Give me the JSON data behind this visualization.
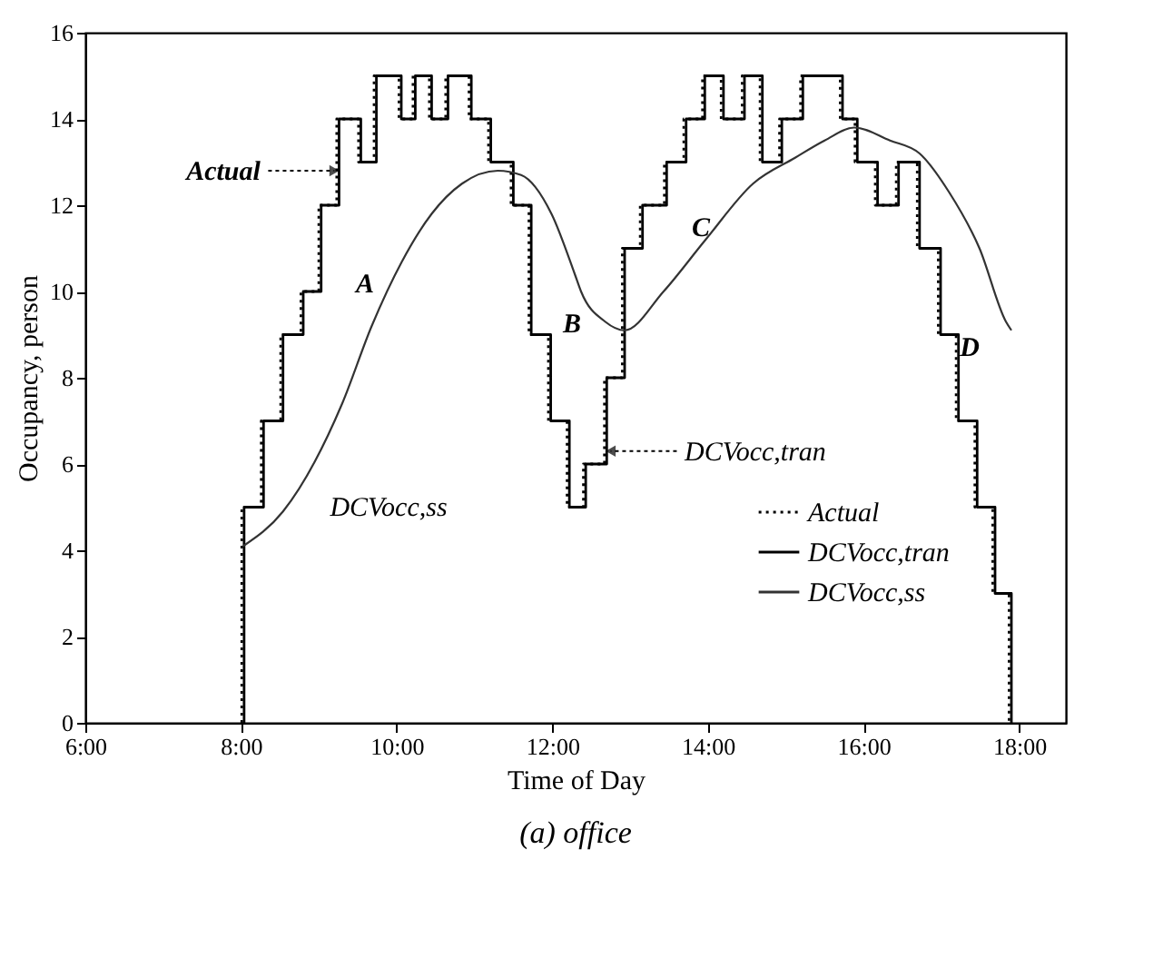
{
  "chart_data": {
    "type": "step",
    "title": "(a) office",
    "xlabel": "Time of Day",
    "ylabel": "Occupancy, person",
    "xlim": [
      6,
      18.6
    ],
    "xticks": [
      {
        "value": 6,
        "label": "6:00"
      },
      {
        "value": 8,
        "label": "8:00"
      },
      {
        "value": 10,
        "label": "10:00"
      },
      {
        "value": 12,
        "label": "12:00"
      },
      {
        "value": 14,
        "label": "14:00"
      },
      {
        "value": 16,
        "label": "16:00"
      },
      {
        "value": 18,
        "label": "18:00"
      }
    ],
    "ylim": [
      0,
      16
    ],
    "yticks": [
      0,
      2,
      4,
      6,
      8,
      10,
      12,
      14,
      16
    ],
    "grid": false,
    "legend": "bottom right",
    "marker": "none",
    "series": [
      {
        "name": "Actual",
        "color": "#000000",
        "line_style": "dotted",
        "x": [
          8.01,
          8.01,
          8.26,
          8.51,
          8.77,
          9.0,
          9.23,
          9.51,
          9.71,
          10.03,
          10.21,
          10.42,
          10.63,
          10.93,
          11.18,
          11.47,
          11.7,
          11.95,
          12.19,
          12.4,
          12.67,
          12.9,
          13.13,
          13.44,
          13.69,
          13.93,
          14.17,
          14.44,
          14.67,
          14.92,
          15.19,
          15.7,
          15.89,
          16.15,
          16.42,
          16.69,
          16.96,
          17.19,
          17.43,
          17.66,
          17.87
        ],
        "values": [
          0,
          5,
          7,
          9,
          10,
          12,
          14,
          13,
          15,
          14,
          15,
          14,
          15,
          14,
          13,
          12,
          9,
          7,
          5,
          6,
          8,
          11,
          12,
          13,
          14,
          15,
          14,
          15,
          13,
          14,
          15,
          14,
          13,
          12,
          13,
          11,
          9,
          7,
          5,
          3,
          0
        ]
      },
      {
        "name": "DCVocc,tran",
        "color": "#000000",
        "line_style": "solid",
        "x": [
          8.04,
          8.04,
          8.29,
          8.54,
          8.8,
          9.03,
          9.26,
          9.54,
          9.74,
          10.06,
          10.24,
          10.45,
          10.66,
          10.96,
          11.21,
          11.5,
          11.73,
          11.98,
          12.22,
          12.43,
          12.7,
          12.93,
          13.16,
          13.47,
          13.72,
          13.96,
          14.2,
          14.47,
          14.7,
          14.95,
          15.22,
          15.73,
          15.92,
          16.18,
          16.45,
          16.72,
          16.99,
          17.22,
          17.46,
          17.69,
          17.9
        ],
        "values": [
          0,
          5,
          7,
          9,
          10,
          12,
          14,
          13,
          15,
          14,
          15,
          14,
          15,
          14,
          13,
          12,
          9,
          7,
          5,
          6,
          8,
          11,
          12,
          13,
          14,
          15,
          14,
          15,
          13,
          14,
          15,
          14,
          13,
          12,
          13,
          11,
          9,
          7,
          5,
          3,
          0
        ]
      },
      {
        "name": "DCVocc,ss",
        "type": "line",
        "color": "#333333",
        "line_style": "solid",
        "x": [
          8.03,
          8.54,
          9.3,
          9.68,
          10.07,
          10.45,
          10.84,
          11.3,
          11.6,
          11.99,
          12.29,
          12.37,
          12.68,
          12.93,
          13.43,
          13.97,
          14.58,
          15.12,
          15.5,
          15.88,
          16.34,
          16.72,
          17.1,
          17.49,
          17.83,
          17.9
        ],
        "values": [
          4.1,
          4.9,
          7.4,
          9.2,
          10.7,
          11.8,
          12.5,
          12.8,
          12.7,
          11.8,
          10.4,
          10.0,
          9.3,
          9.1,
          10.0,
          11.2,
          12.5,
          13.1,
          13.5,
          13.8,
          13.5,
          13.2,
          12.3,
          11.0,
          9.3,
          9.1
        ]
      }
    ],
    "annotations": [
      {
        "text": "Actual",
        "x": 9.2,
        "y": 12.8
      },
      {
        "text": "DCVocc,tran",
        "x": 12.75,
        "y": 6.3
      },
      "A",
      "B",
      "C",
      "D",
      "DCVocc,ss"
    ]
  }
}
